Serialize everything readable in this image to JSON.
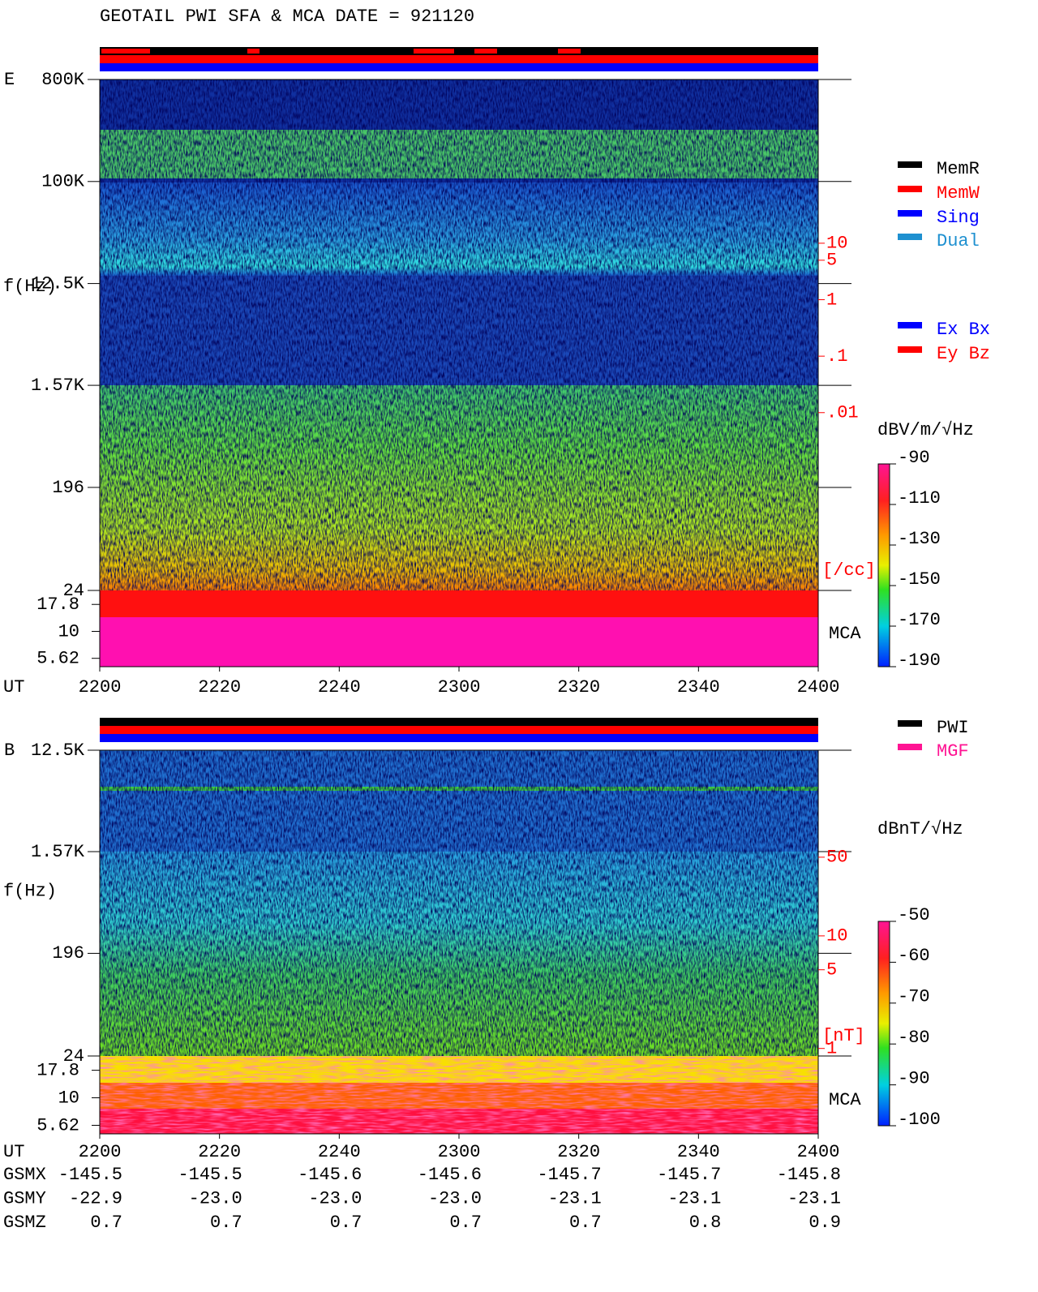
{
  "title": "GEOTAIL  PWI SFA & MCA   DATE = 921120",
  "chart_data": [
    {
      "type": "spectrogram",
      "panel_label": "E",
      "ylabel": "f(Hz)",
      "xlabel": "UT",
      "categories": [
        "2200",
        "2220",
        "2240",
        "2300",
        "2320",
        "2340",
        "2400"
      ],
      "yscale": "log",
      "ylim": [
        800000,
        24
      ],
      "yticks": [
        {
          "value": 800000,
          "label": "800K"
        },
        {
          "value": 100000,
          "label": "100K"
        },
        {
          "value": 12500,
          "label": "12.5K"
        },
        {
          "value": 1570,
          "label": "1.57K"
        },
        196,
        24
      ],
      "mca_label": "MCA",
      "mca_ylim": [
        24,
        4.7
      ],
      "mca_ticks": [
        17.8,
        10,
        5.62
      ],
      "y2_label": "[/cc]",
      "y2lim": [
        7937,
        7.1e-06
      ],
      "y2ticks": [
        10,
        5,
        1,
        {
          "value": 0.1,
          "label": ".1"
        },
        {
          "value": 0.01,
          "label": ".01"
        }
      ],
      "colorbar_label": "dBV/m/√Hz",
      "clim": [
        -190,
        -90
      ],
      "cticks": [
        -90,
        -110,
        -130,
        -150,
        -170,
        -190
      ],
      "legend": [
        {
          "name": "MemR",
          "color": "#000000"
        },
        {
          "name": "MemW",
          "color": "#ff0000"
        },
        {
          "name": "Sing",
          "color": "#0000ff"
        },
        {
          "name": "Dual",
          "color": "#1e90d0"
        }
      ],
      "legend2": [
        {
          "name": "Ex Bx",
          "color": "#0000ff"
        },
        {
          "name": "Ey Bz",
          "color": "#ff0000"
        }
      ]
    },
    {
      "type": "spectrogram",
      "panel_label": "B",
      "ylabel": "f(Hz)",
      "xlabel": "UT",
      "categories": [
        "2200",
        "2220",
        "2240",
        "2300",
        "2320",
        "2340",
        "2400"
      ],
      "yscale": "log",
      "ylim": [
        12500,
        24
      ],
      "yticks": [
        {
          "value": 12500,
          "label": "12.5K"
        },
        {
          "value": 1570,
          "label": "1.57K"
        },
        196,
        24
      ],
      "mca_label": "MCA",
      "mca_ylim": [
        24,
        4.7
      ],
      "mca_ticks": [
        17.8,
        10,
        5.62
      ],
      "y2_label": "[nT]",
      "y2lim": [
        446,
        0.857
      ],
      "y2ticks": [
        50,
        10,
        5,
        1
      ],
      "colorbar_label": "dBnT/√Hz",
      "clim": [
        -100,
        -50
      ],
      "cticks": [
        -50,
        -60,
        -70,
        -80,
        -90,
        -100
      ],
      "legend": [
        {
          "name": "PWI",
          "color": "#000000"
        },
        {
          "name": "MGF",
          "color": "#ff1493"
        }
      ]
    }
  ],
  "orbit": {
    "rows": [
      {
        "name": "GSMX",
        "values": [
          -145.5,
          -145.5,
          -145.6,
          -145.6,
          -145.7,
          -145.7,
          -145.8
        ]
      },
      {
        "name": "GSMY",
        "values": [
          -22.9,
          {
            "value": -23.0,
            "label": "-23.0"
          },
          {
            "value": -23.0,
            "label": "-23.0"
          },
          {
            "value": -23.0,
            "label": "-23.0"
          },
          -23.1,
          -23.1,
          -23.1
        ]
      },
      {
        "name": "GSMZ",
        "values": [
          0.7,
          0.7,
          0.7,
          0.7,
          0.7,
          0.8,
          0.9
        ]
      }
    ]
  }
}
